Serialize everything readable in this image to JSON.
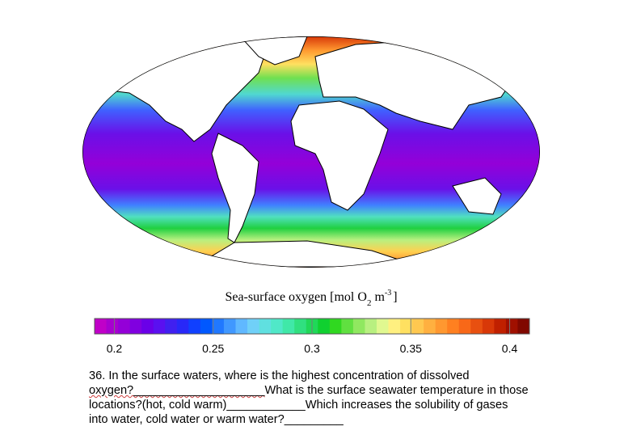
{
  "figure": {
    "title_parts": [
      "Sea-surface oxygen [mol O",
      "2",
      "m",
      "-3",
      "]"
    ],
    "colorbar": {
      "lim": [
        0.19,
        0.41
      ],
      "ticks": [
        0.2,
        0.25,
        0.3,
        0.35,
        0.4
      ],
      "colors": [
        "#c000c8",
        "#a800d0",
        "#9400d8",
        "#8000e0",
        "#6a00e8",
        "#5a10f0",
        "#4020f0",
        "#2828f8",
        "#1040ff",
        "#0058ff",
        "#2078ff",
        "#4098ff",
        "#60b8ff",
        "#70d0f8",
        "#60e0e0",
        "#50e8c8",
        "#40e8a8",
        "#30e080",
        "#20d858",
        "#10d030",
        "#30d820",
        "#60e040",
        "#90e860",
        "#b8f080",
        "#e0f890",
        "#fff080",
        "#ffe060",
        "#ffc850",
        "#ffb040",
        "#ff9830",
        "#ff8020",
        "#f86818",
        "#e85010",
        "#d83808",
        "#c02000",
        "#a01000",
        "#800800"
      ]
    }
  },
  "question": {
    "lines": [
      "36. In the surface waters, where is the highest concentration of dissolved",
      "oxygen?____________________What is the surface seawater temperature in those",
      "locations?(hot, cold warm)____________Which increases the solubility of gases",
      "into water, cold water or warm water?_________"
    ]
  }
}
